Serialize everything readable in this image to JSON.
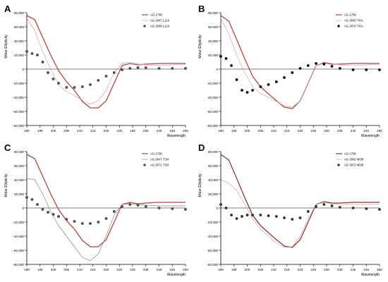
{
  "chart_data": [
    {
      "panel_label": "A",
      "type": "line",
      "ylabel": "Molar Ellipticity",
      "xlabel": "Wavelength",
      "xlim": [
        190,
        250
      ],
      "ylim": [
        -80000,
        80000
      ],
      "xticks": [
        "190",
        "195",
        "200",
        "205",
        "210",
        "215",
        "220",
        "225",
        "230",
        "235",
        "240",
        "245",
        "250"
      ],
      "yticks": [
        "80,000",
        "60,000",
        "40,000",
        "20,000",
        "0",
        "-20,000",
        "-40,000",
        "-60,000",
        "-80,000"
      ],
      "legend_position": "top-right",
      "series": [
        {
          "name": "AG-1796",
          "color": "#b5473a",
          "style": "line",
          "x": [
            190,
            193,
            196,
            199,
            202,
            205,
            208,
            211,
            214,
            217,
            220,
            223,
            226,
            229,
            232,
            235,
            240,
            245,
            250
          ],
          "y": [
            76000,
            70000,
            45000,
            20000,
            -2000,
            -18000,
            -30000,
            -46000,
            -55000,
            -55000,
            -45000,
            -20000,
            5000,
            8000,
            6000,
            7000,
            8000,
            8000,
            8000
          ]
        },
        {
          "name": "AG-2847 L11K",
          "color": "#d9a0ad",
          "style": "thin",
          "x": [
            190,
            193,
            196,
            199,
            202,
            205,
            208,
            211,
            214,
            217,
            220,
            223,
            226,
            229,
            232,
            235,
            240,
            245,
            250
          ],
          "y": [
            72000,
            55000,
            25000,
            0,
            -22000,
            -32000,
            -38000,
            -44000,
            -50000,
            -45000,
            -30000,
            -5000,
            8000,
            10000,
            7000,
            6000,
            5000,
            6000,
            7000
          ]
        },
        {
          "name": "AG-2848 L11K",
          "color": "#555555",
          "style": "markers",
          "x": [
            190,
            192,
            194,
            196,
            198,
            200,
            202,
            205,
            208,
            211,
            214,
            217,
            220,
            223,
            226,
            229,
            232,
            235,
            240,
            245,
            250
          ],
          "y": [
            25000,
            22000,
            20000,
            10000,
            -5000,
            -14000,
            -20000,
            -26000,
            -26000,
            -25000,
            -22000,
            -16000,
            -10000,
            -5000,
            -1000,
            1000,
            2000,
            2000,
            1000,
            1000,
            1000
          ]
        }
      ]
    },
    {
      "panel_label": "B",
      "type": "line",
      "ylabel": "Molar Ellipticity",
      "xlabel": "Wavelength",
      "xlim": [
        190,
        250
      ],
      "ylim": [
        -80000,
        80000
      ],
      "xticks": [
        "190",
        "195",
        "200",
        "205",
        "210",
        "215",
        "220",
        "225",
        "230",
        "235",
        "240",
        "245",
        "250"
      ],
      "yticks": [
        "80,000",
        "60,000",
        "40,000",
        "20,000",
        "0",
        "-20,000",
        "-40,000",
        "-60,000",
        "-80,000"
      ],
      "legend_position": "top-right",
      "series": [
        {
          "name": "AG-1796",
          "color": "#b5473a",
          "style": "line",
          "x": [
            190,
            193,
            196,
            199,
            202,
            205,
            208,
            211,
            214,
            217,
            220,
            223,
            226,
            229,
            232,
            235,
            240,
            245,
            250
          ],
          "y": [
            76000,
            68000,
            42000,
            15000,
            -10000,
            -25000,
            -35000,
            -45000,
            -54000,
            -56000,
            -45000,
            -20000,
            5000,
            9000,
            7000,
            7000,
            8000,
            8000,
            8000
          ]
        },
        {
          "name": "AG-3050 T4/A",
          "color": "#d9a0ad",
          "style": "thin",
          "x": [
            190,
            193,
            196,
            199,
            202,
            205,
            208,
            211,
            214,
            217,
            220,
            223,
            226,
            229,
            232,
            235,
            240,
            245,
            250
          ],
          "y": [
            72000,
            50000,
            20000,
            -5000,
            -25000,
            -35000,
            -40000,
            -46000,
            -52000,
            -54000,
            -45000,
            -20000,
            5000,
            10000,
            8000,
            6000,
            5000,
            6000,
            7000
          ]
        },
        {
          "name": "AG-3070 T4/A",
          "color": "#000000",
          "style": "markers",
          "x": [
            190,
            192,
            194,
            196,
            198,
            200,
            202,
            205,
            208,
            211,
            214,
            217,
            220,
            223,
            226,
            229,
            232,
            235,
            240,
            245,
            250
          ],
          "y": [
            18000,
            15000,
            5000,
            -15000,
            -30000,
            -33000,
            -30000,
            -25000,
            -22000,
            -18000,
            -12000,
            -5000,
            1000,
            5000,
            8000,
            7000,
            4000,
            1000,
            -1000,
            -1000,
            -1000
          ]
        }
      ]
    },
    {
      "panel_label": "C",
      "type": "line",
      "ylabel": "Molar Ellipticity",
      "xlabel": "Wavelength",
      "xlim": [
        190,
        250
      ],
      "ylim": [
        -80000,
        80000
      ],
      "xticks": [
        "190",
        "195",
        "200",
        "205",
        "210",
        "215",
        "220",
        "225",
        "230",
        "235",
        "240",
        "245",
        "250"
      ],
      "yticks": [
        "80,000",
        "60,000",
        "40,000",
        "20,000",
        "0",
        "-20,000",
        "-40,000",
        "-60,000",
        "-80,000"
      ],
      "legend_position": "top-right",
      "series": [
        {
          "name": "AG-1796",
          "color": "#b5473a",
          "style": "line",
          "x": [
            190,
            193,
            196,
            199,
            202,
            205,
            208,
            211,
            214,
            217,
            220,
            223,
            226,
            229,
            232,
            235,
            240,
            245,
            250
          ],
          "y": [
            76000,
            70000,
            45000,
            20000,
            -2000,
            -18000,
            -30000,
            -46000,
            -55000,
            -55000,
            -45000,
            -20000,
            5000,
            8000,
            6000,
            7000,
            8000,
            8000,
            8000
          ]
        },
        {
          "name": "AG-3047 T3/4",
          "color": "#888888",
          "style": "thin",
          "x": [
            190,
            193,
            196,
            199,
            202,
            205,
            208,
            211,
            214,
            217,
            220,
            223,
            226,
            229,
            232,
            235,
            240,
            245,
            250
          ],
          "y": [
            42000,
            40000,
            20000,
            -5000,
            -25000,
            -40000,
            -55000,
            -70000,
            -75000,
            -65000,
            -40000,
            -10000,
            5000,
            6000,
            5000,
            4000,
            3000,
            3000,
            3000
          ]
        },
        {
          "name": "AG-3071 T3/4",
          "color": "#555555",
          "style": "markers",
          "x": [
            190,
            192,
            194,
            196,
            198,
            200,
            202,
            205,
            208,
            211,
            214,
            217,
            220,
            223,
            226,
            229,
            232,
            235,
            240,
            245,
            250
          ],
          "y": [
            15000,
            12000,
            5000,
            -2000,
            -6000,
            -9000,
            -12000,
            -16000,
            -19000,
            -22000,
            -22000,
            -20000,
            -15000,
            -5000,
            2000,
            5000,
            4000,
            2000,
            0,
            -1000,
            -2000
          ]
        }
      ]
    },
    {
      "panel_label": "D",
      "type": "line",
      "ylabel": "Molar Ellipticity",
      "xlabel": "Wavelength",
      "xlim": [
        190,
        250
      ],
      "ylim": [
        -80000,
        80000
      ],
      "xticks": [
        "190",
        "195",
        "200",
        "205",
        "210",
        "215",
        "220",
        "225",
        "230",
        "235",
        "240",
        "245",
        "250"
      ],
      "yticks": [
        "80,000",
        "60,000",
        "40,000",
        "20,000",
        "0",
        "-20,000",
        "-40,000",
        "-60,000",
        "-80,000"
      ],
      "legend_position": "top-right",
      "series": [
        {
          "name": "AG-1796",
          "color": "#8b3a2a",
          "style": "line",
          "x": [
            190,
            193,
            196,
            199,
            202,
            205,
            208,
            211,
            214,
            217,
            220,
            223,
            226,
            229,
            232,
            235,
            240,
            245,
            250
          ],
          "y": [
            76000,
            68000,
            42000,
            15000,
            -10000,
            -25000,
            -35000,
            -45000,
            -54000,
            -56000,
            -45000,
            -20000,
            5000,
            9000,
            7000,
            7000,
            8000,
            8000,
            8000
          ]
        },
        {
          "name": "AG-3092 M6/8",
          "color": "#d9a0ad",
          "style": "thin",
          "x": [
            190,
            193,
            196,
            199,
            202,
            205,
            208,
            211,
            214,
            217,
            220,
            223,
            226,
            229,
            232,
            235,
            240,
            245,
            250
          ],
          "y": [
            40000,
            35000,
            25000,
            5000,
            -15000,
            -30000,
            -40000,
            -50000,
            -56000,
            -55000,
            -40000,
            -15000,
            5000,
            8000,
            6000,
            5000,
            5000,
            5000,
            5000
          ]
        },
        {
          "name": "AG-3072 M6/8",
          "color": "#333333",
          "style": "markers",
          "x": [
            190,
            192,
            194,
            196,
            198,
            200,
            202,
            205,
            208,
            211,
            214,
            217,
            220,
            223,
            226,
            229,
            232,
            235,
            240,
            245,
            250
          ],
          "y": [
            5000,
            0,
            -10000,
            -15000,
            -12000,
            -10000,
            -10000,
            -10000,
            -11000,
            -12000,
            -14000,
            -16000,
            -14000,
            -5000,
            2000,
            5000,
            3000,
            1000,
            0,
            -1000,
            -2000
          ]
        }
      ]
    }
  ]
}
